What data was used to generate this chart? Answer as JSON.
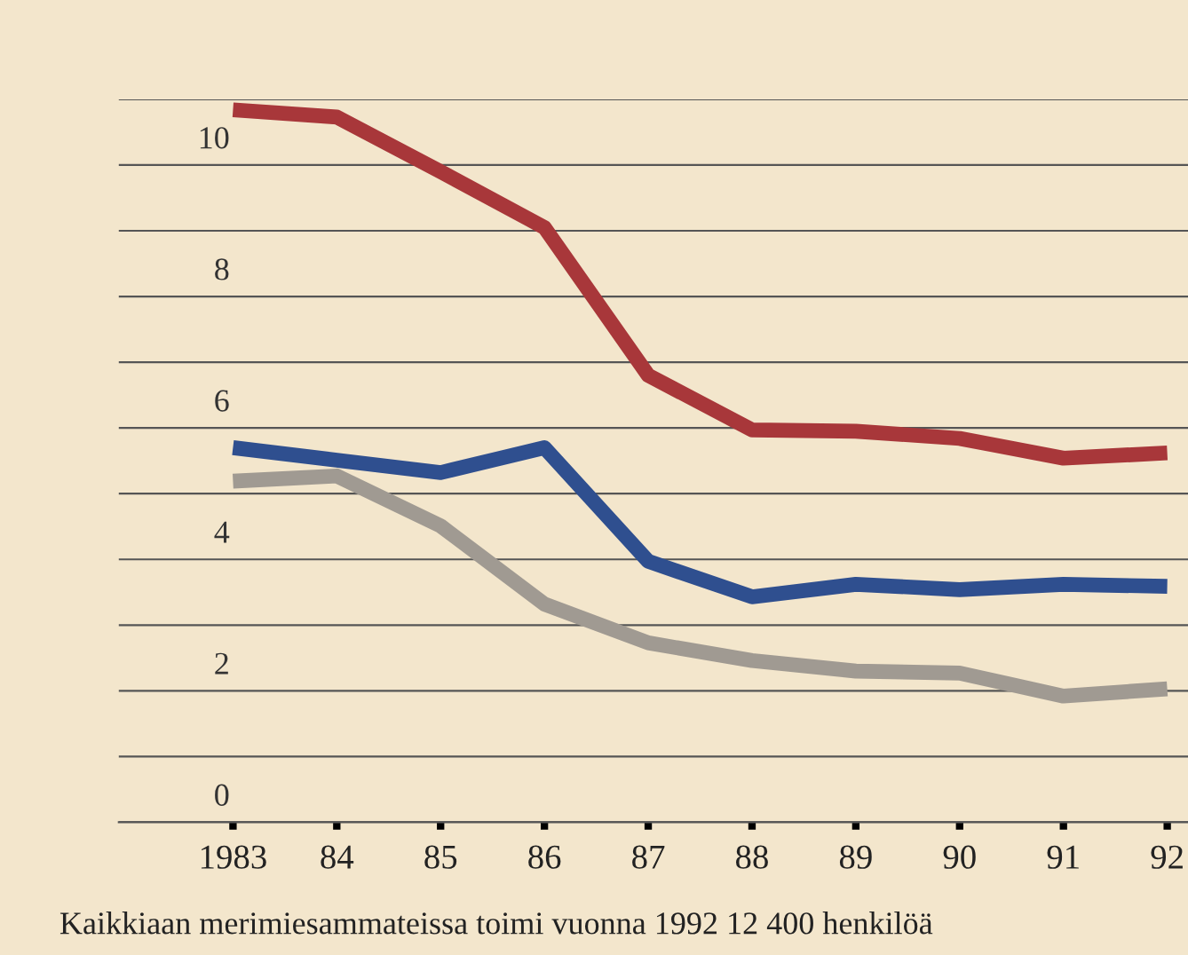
{
  "chart_data": {
    "type": "line",
    "x": [
      1983,
      1984,
      1985,
      1986,
      1987,
      1988,
      1989,
      1990,
      1991,
      1992
    ],
    "series": [
      {
        "color": "#a8373a",
        "values": [
          10.84,
          10.73,
          9.9,
          9.05,
          6.8,
          5.97,
          5.95,
          5.84,
          5.54,
          5.62
        ]
      },
      {
        "color": "#2f4f8f",
        "values": [
          5.7,
          5.51,
          5.32,
          5.7,
          3.97,
          3.43,
          3.62,
          3.54,
          3.62,
          3.59
        ]
      },
      {
        "color": "#a09a92",
        "values": [
          5.19,
          5.27,
          4.51,
          3.32,
          2.73,
          2.46,
          2.3,
          2.27,
          1.92,
          2.03
        ]
      }
    ],
    "xlim": [
      1981.9,
      1992.2
    ],
    "ylim": [
      0,
      11
    ],
    "xticks": [
      {
        "value": 1983,
        "label": "1983"
      },
      {
        "value": 1984,
        "label": "84"
      },
      {
        "value": 1985,
        "label": "85"
      },
      {
        "value": 1986,
        "label": "86"
      },
      {
        "value": 1987,
        "label": "87"
      },
      {
        "value": 1988,
        "label": "88"
      },
      {
        "value": 1989,
        "label": "89"
      },
      {
        "value": 1990,
        "label": "90"
      },
      {
        "value": 1991,
        "label": "91"
      },
      {
        "value": 1992,
        "label": "92"
      }
    ],
    "yticks": [
      0,
      {
        "value": 1,
        "label": null
      },
      2,
      {
        "value": 3,
        "label": null
      },
      4,
      {
        "value": 5,
        "label": null
      },
      6,
      {
        "value": 7,
        "label": null
      },
      8,
      {
        "value": 9,
        "label": null
      },
      10,
      {
        "value": 11,
        "label": null
      }
    ],
    "grid": "y",
    "legend": false,
    "marker": "none",
    "line_style": "solid",
    "annotations": [
      "Kaikkiaan merimiesammateissa toimi vuonna 1992 12 400 henkilöä"
    ]
  }
}
